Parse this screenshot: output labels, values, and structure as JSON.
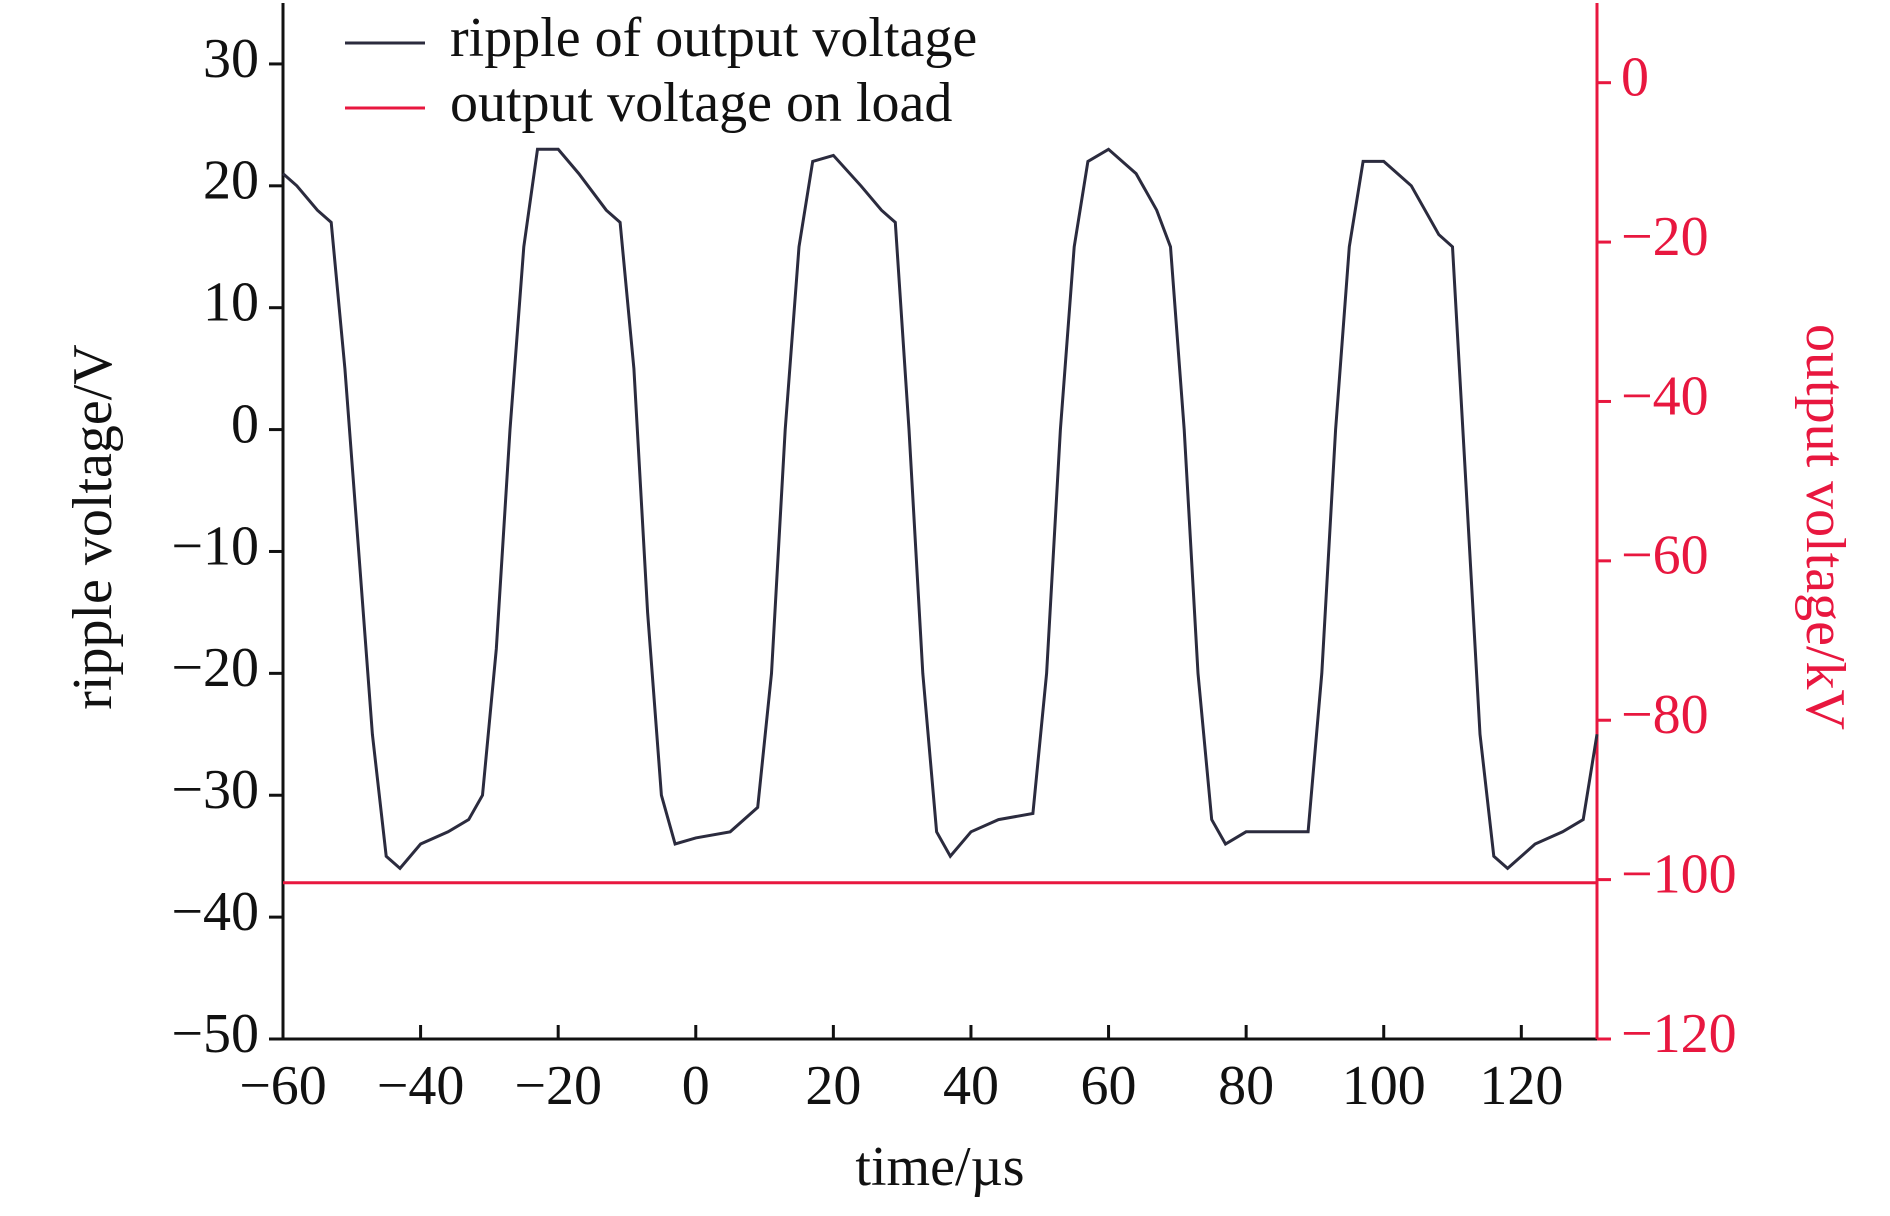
{
  "chart_data": {
    "type": "line",
    "xlabel": "time/µs",
    "ylabel": "ripple voltage/V",
    "y2label": "output voltage/kV",
    "xlim": [
      -60,
      131
    ],
    "ylim": [
      -50,
      35
    ],
    "y2lim": [
      -120,
      10
    ],
    "xticks": [
      {
        "value": -60,
        "label": "−60"
      },
      {
        "value": -40,
        "label": "−40"
      },
      {
        "value": -20,
        "label": "−20"
      },
      0,
      20,
      40,
      60,
      80,
      100,
      120
    ],
    "yticks": [
      {
        "value": -50,
        "label": "−50"
      },
      {
        "value": -40,
        "label": "−40"
      },
      {
        "value": -30,
        "label": "−30"
      },
      {
        "value": -20,
        "label": "−20"
      },
      {
        "value": -10,
        "label": "−10"
      },
      0,
      10,
      20,
      30
    ],
    "y2ticks": [
      {
        "value": -120,
        "label": "−120"
      },
      {
        "value": -100,
        "label": "−100"
      },
      {
        "value": -80,
        "label": "−80"
      },
      {
        "value": -60,
        "label": "−60"
      },
      {
        "value": -40,
        "label": "−40"
      },
      {
        "value": -20,
        "label": "−20"
      },
      0
    ],
    "legend": "upper left",
    "series": [
      {
        "name": "ripple of output voltage",
        "color": "#2b2b3e",
        "x": [
          -60,
          -58,
          -55,
          -53,
          -51,
          -49,
          -47,
          -45,
          -43,
          -40,
          -36,
          -33,
          -31,
          -29,
          -27,
          -25,
          -23,
          -20,
          -17,
          -13,
          -11,
          -9,
          -7,
          -5,
          -3,
          0,
          5,
          9,
          11,
          13,
          15,
          17,
          20,
          24,
          27,
          29,
          31,
          33,
          35,
          37,
          40,
          44,
          49,
          51,
          53,
          55,
          57,
          60,
          64,
          67,
          69,
          71,
          73,
          75,
          77,
          80,
          85,
          89,
          91,
          93,
          95,
          97,
          100,
          104,
          108,
          110,
          112,
          114,
          116,
          118,
          122,
          126,
          129,
          131
        ],
        "values": [
          21,
          20,
          18,
          17,
          5,
          -10,
          -25,
          -35,
          -36,
          -34,
          -33,
          -32,
          -30,
          -18,
          0,
          15,
          23,
          23,
          21,
          18,
          17,
          5,
          -15,
          -30,
          -34,
          -33.5,
          -33,
          -31,
          -20,
          0,
          15,
          22,
          22.5,
          20,
          18,
          17,
          0,
          -20,
          -33,
          -35,
          -33,
          -32,
          -31.5,
          -20,
          0,
          15,
          22,
          23,
          21,
          18,
          15,
          0,
          -20,
          -32,
          -34,
          -33,
          -33,
          -33,
          -20,
          0,
          15,
          22,
          22,
          20,
          16,
          15,
          -5,
          -25,
          -35,
          -36,
          -34,
          -33,
          -32,
          -25
        ]
      },
      {
        "name": "output voltage on load",
        "color": "#e8173f",
        "axis": "y2",
        "x": [
          -60,
          -40,
          -20,
          0,
          20,
          40,
          60,
          80,
          100,
          120,
          131
        ],
        "values": [
          -100.4,
          -100.4,
          -100.4,
          -100.4,
          -100.4,
          -100.4,
          -100.4,
          -100.4,
          -100.4,
          -100.4,
          -100.4
        ]
      }
    ]
  }
}
